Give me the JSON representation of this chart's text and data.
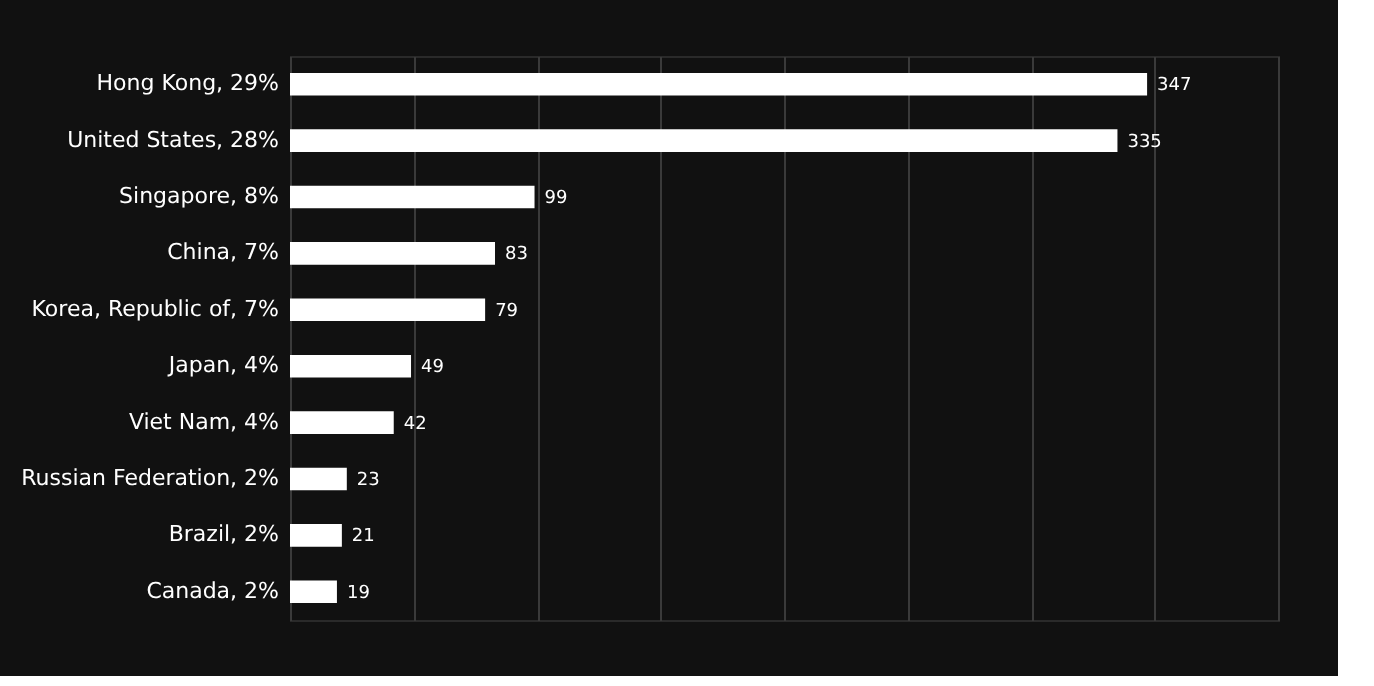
{
  "chart_data": {
    "type": "bar",
    "orientation": "horizontal",
    "categories": [
      "Hong Kong, 29%",
      "United States, 28%",
      "Singapore, 8%",
      "China, 7%",
      "Korea, Republic of, 7%",
      "Japan, 4%",
      "Viet Nam, 4%",
      "Russian Federation, 2%",
      "Brazil, 2%",
      "Canada, 2%"
    ],
    "values": [
      347,
      335,
      99,
      83,
      79,
      49,
      42,
      23,
      21,
      19
    ],
    "color": "#ffffff",
    "xlim": [
      0,
      400
    ],
    "xticks": [
      {
        "value": 0,
        "label": null
      },
      {
        "value": 50,
        "label": null
      },
      {
        "value": 100,
        "label": null
      },
      {
        "value": 150,
        "label": null
      },
      {
        "value": 200,
        "label": null
      },
      {
        "value": 250,
        "label": null
      },
      {
        "value": 300,
        "label": null
      },
      {
        "value": 350,
        "label": null
      },
      {
        "value": 400,
        "label": null
      }
    ],
    "grid": "x",
    "tick_labels": "y",
    "data_labels": true
  }
}
